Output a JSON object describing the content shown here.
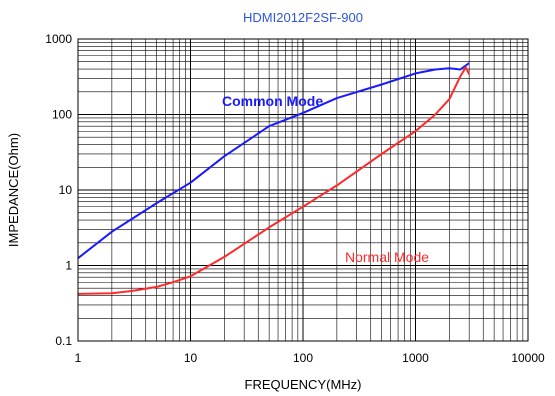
{
  "chart_data": {
    "type": "line",
    "title": "HDMI2012F2SF-900",
    "xlabel": "FREQUENCY(MHz)",
    "ylabel": "IMPEDANCE(Ohm)",
    "xscale": "log",
    "yscale": "log",
    "xlim": [
      1,
      10000
    ],
    "ylim": [
      0.1,
      1000
    ],
    "grid": true,
    "x_ticks": [
      "1",
      "10",
      "100",
      "1000",
      "10000"
    ],
    "y_ticks": [
      "0.1",
      "1",
      "10",
      "100",
      "1000"
    ],
    "series": [
      {
        "name": "Common Mode",
        "color": "#1a1aff",
        "x": [
          1,
          2,
          5,
          10,
          20,
          50,
          100,
          200,
          500,
          1000,
          1500,
          2000,
          2500,
          3000
        ],
        "y": [
          1.25,
          2.8,
          6.7,
          12.5,
          28,
          70,
          105,
          165,
          250,
          350,
          395,
          410,
          395,
          480
        ]
      },
      {
        "name": "Normal Mode",
        "color": "#ff2a2a",
        "x": [
          1,
          2,
          3,
          5,
          7,
          10,
          20,
          50,
          100,
          200,
          500,
          1000,
          1500,
          2000,
          2500,
          2800,
          3000
        ],
        "y": [
          0.42,
          0.43,
          0.46,
          0.52,
          0.6,
          0.72,
          1.3,
          3.2,
          6.0,
          11.5,
          30,
          60,
          100,
          160,
          320,
          420,
          340
        ]
      }
    ],
    "annotations": [
      {
        "text": "Common Mode",
        "series": "Common Mode"
      },
      {
        "text": "Normal Mode",
        "series": "Normal Mode"
      }
    ]
  }
}
